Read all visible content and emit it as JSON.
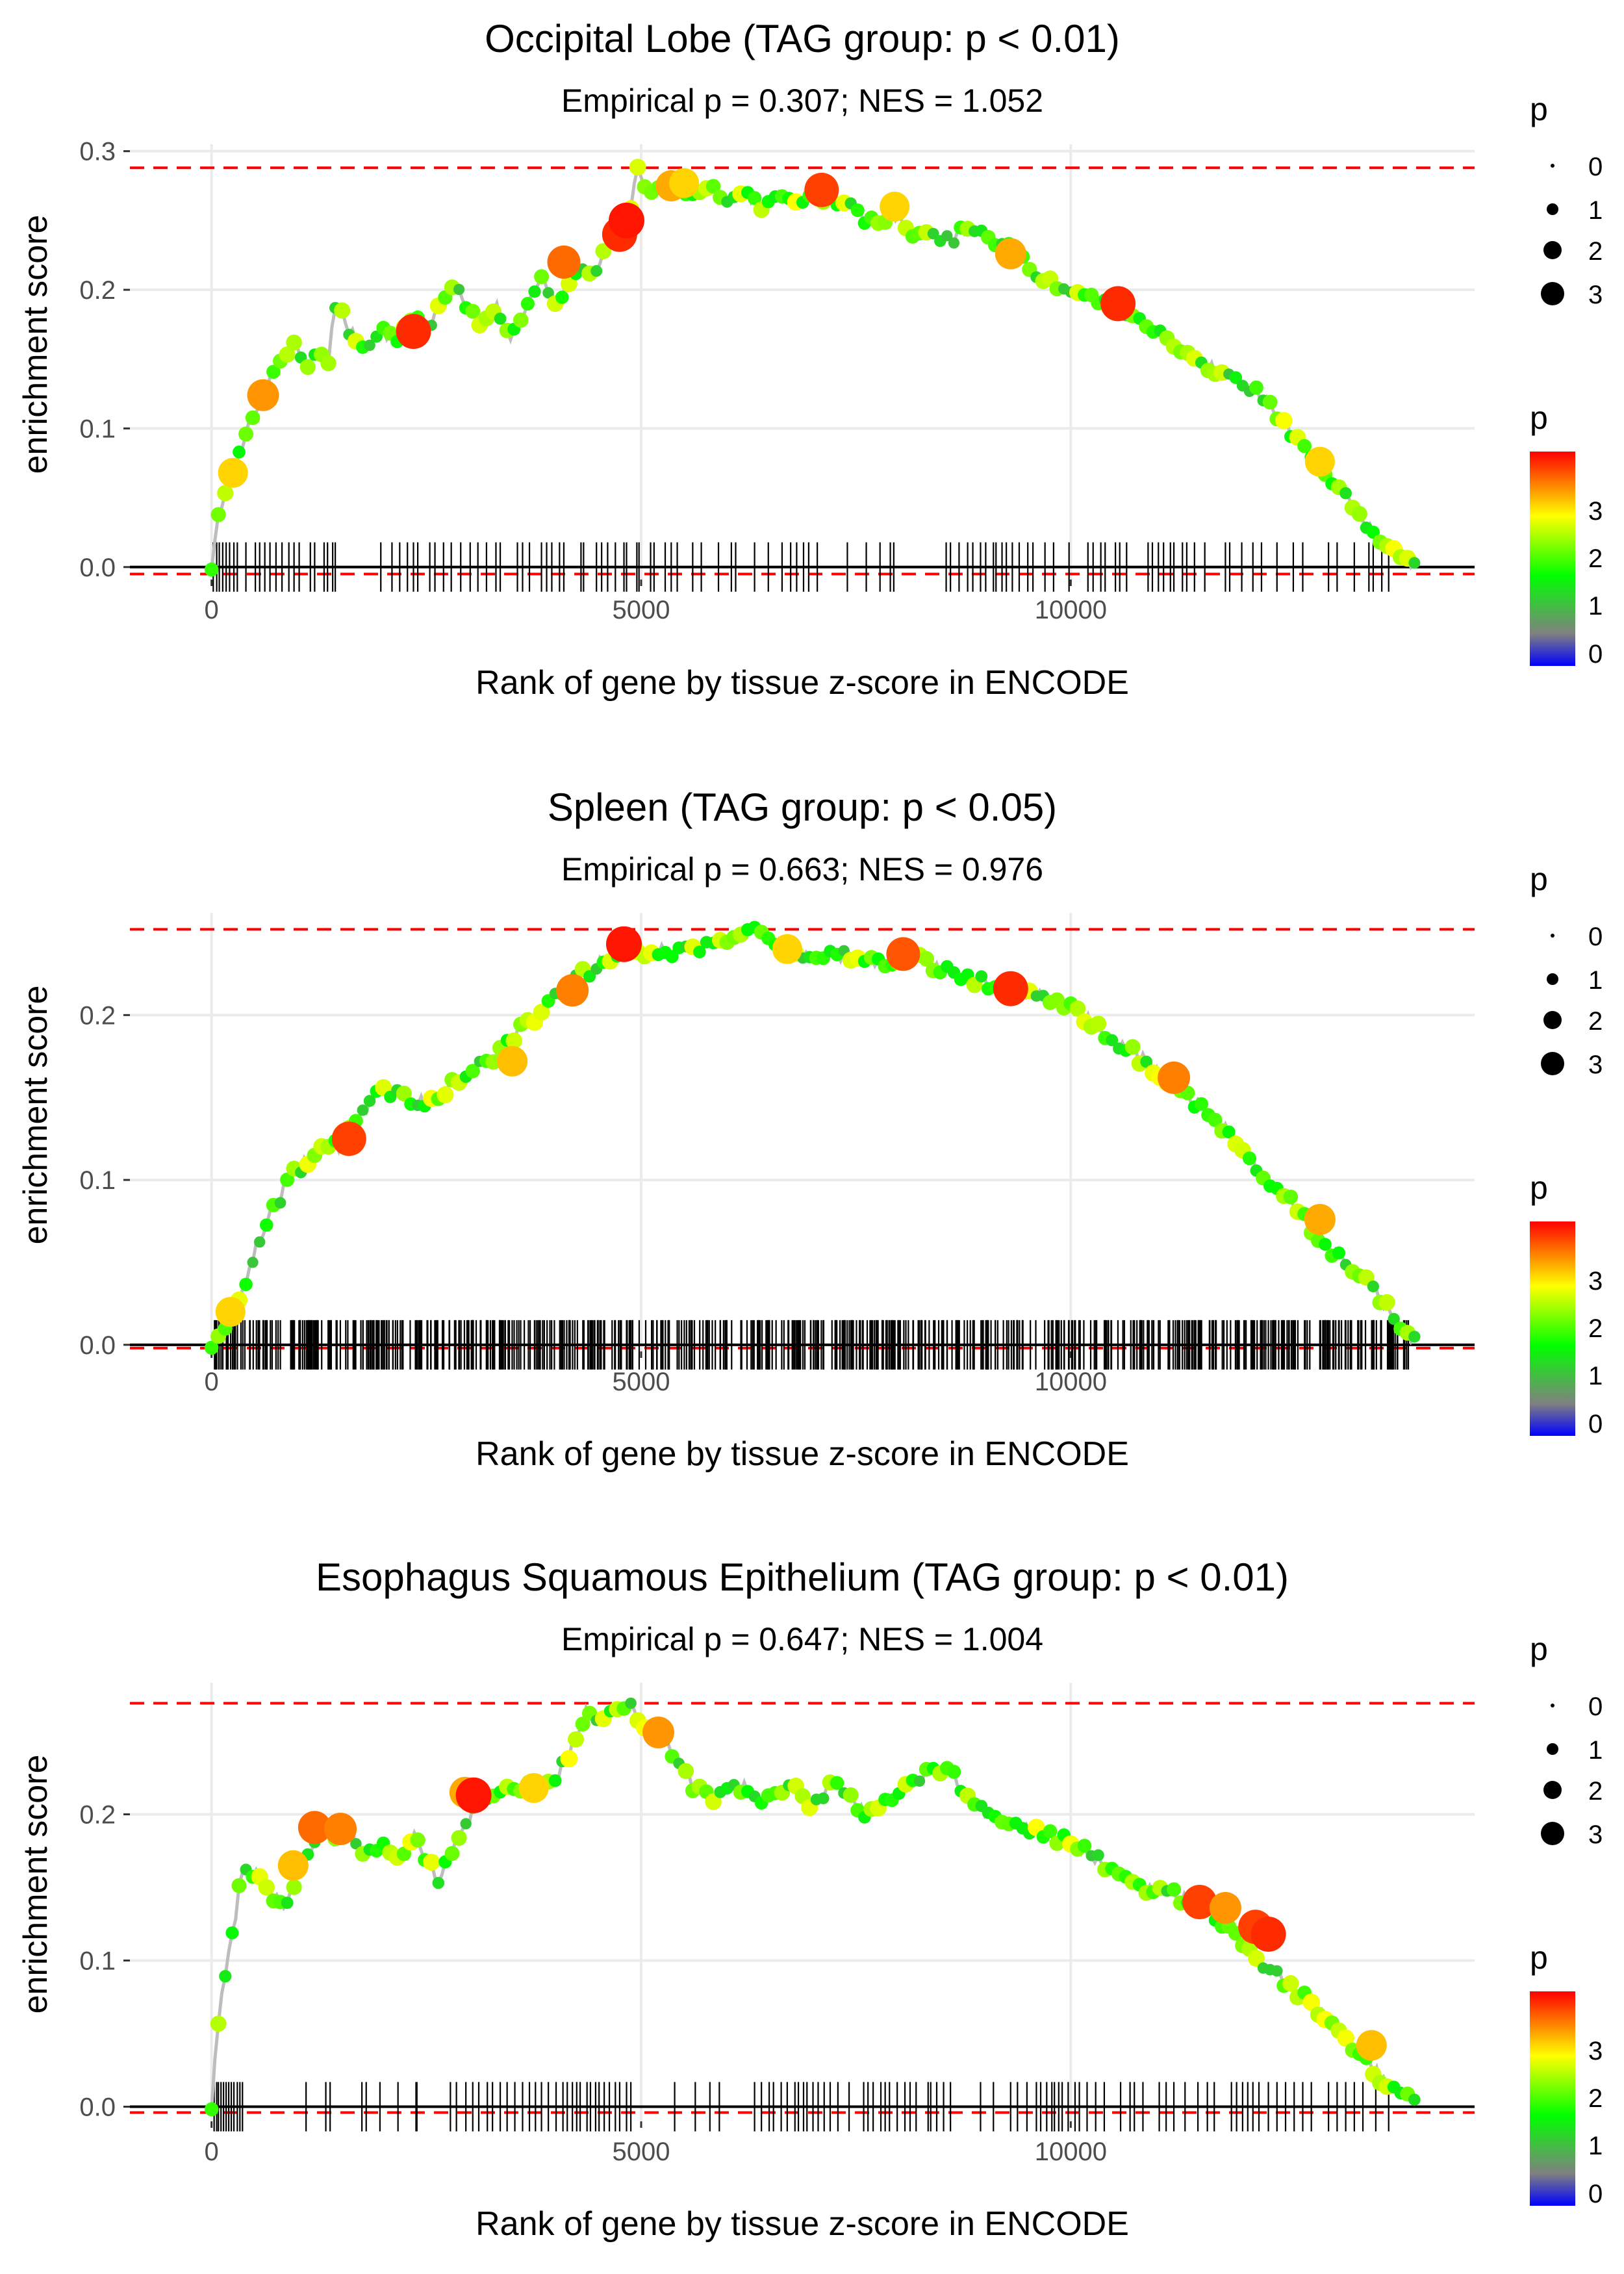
{
  "chart_data": [
    {
      "type": "line",
      "title": "Occipital Lobe (TAG group: p < 0.01)",
      "subtitle": "Empirical p = 0.307; NES = 1.052",
      "xlabel": "Rank of gene by tissue z-score in ENCODE",
      "ylabel": "enrichment score",
      "xlim": [
        -950,
        14700
      ],
      "ylim": [
        -0.009,
        0.305
      ],
      "x_ticks": [
        0,
        5000,
        10000
      ],
      "x_tick_labels": [
        "0",
        "5000",
        "10000"
      ],
      "y_ticks": [
        0.0,
        0.1,
        0.2,
        0.3
      ],
      "y_tick_labels": [
        "0.0",
        "0.1",
        "0.2",
        "0.3"
      ],
      "max_es": 0.288,
      "min_es": -0.005,
      "curve_x": [
        0,
        50,
        100,
        150,
        250,
        350,
        450,
        550,
        650,
        750,
        850,
        950,
        1100,
        1250,
        1350,
        1450,
        1600,
        1800,
        2000,
        2100,
        2250,
        2400,
        2550,
        2700,
        2850,
        3000,
        3150,
        3300,
        3450,
        3600,
        3750,
        3850,
        4000,
        4150,
        4300,
        4450,
        4600,
        4750,
        4850,
        4950,
        5050,
        5200,
        5400,
        5600,
        5800,
        6000,
        6200,
        6400,
        6600,
        6800,
        7000,
        7200,
        7400,
        7600,
        7800,
        8000,
        8200,
        8400,
        8600,
        8800,
        9000,
        9200,
        9400,
        9600,
        9800,
        10000,
        10200,
        10400,
        10600,
        10800,
        11000,
        11200,
        11400,
        11600,
        11800,
        12000,
        12200,
        12400,
        12600,
        12800,
        13000,
        13200,
        13400,
        13600,
        13800,
        14000
      ],
      "curve_y": [
        0.0,
        0.025,
        0.04,
        0.05,
        0.068,
        0.085,
        0.105,
        0.12,
        0.13,
        0.145,
        0.155,
        0.16,
        0.145,
        0.155,
        0.145,
        0.195,
        0.17,
        0.16,
        0.172,
        0.163,
        0.17,
        0.18,
        0.175,
        0.195,
        0.2,
        0.185,
        0.17,
        0.19,
        0.165,
        0.18,
        0.195,
        0.21,
        0.19,
        0.205,
        0.215,
        0.21,
        0.235,
        0.245,
        0.25,
        0.288,
        0.275,
        0.27,
        0.275,
        0.27,
        0.275,
        0.265,
        0.27,
        0.26,
        0.268,
        0.265,
        0.27,
        0.265,
        0.262,
        0.25,
        0.25,
        0.255,
        0.238,
        0.24,
        0.235,
        0.245,
        0.24,
        0.232,
        0.225,
        0.21,
        0.205,
        0.2,
        0.195,
        0.19,
        0.185,
        0.18,
        0.17,
        0.158,
        0.15,
        0.145,
        0.14,
        0.132,
        0.125,
        0.11,
        0.095,
        0.08,
        0.065,
        0.05,
        0.035,
        0.02,
        0.01,
        0.0
      ],
      "hits": [
        20,
        60,
        90,
        130,
        170,
        210,
        260,
        300,
        400,
        510,
        560,
        620,
        680,
        750,
        820,
        900,
        960,
        1020,
        1150,
        1200,
        1310,
        1350,
        1410,
        1440,
        1970,
        2100,
        2190,
        2280,
        2350,
        2400,
        2540,
        2600,
        2700,
        2790,
        2900,
        3010,
        3100,
        3200,
        3310,
        3360,
        3560,
        3620,
        3700,
        3840,
        3900,
        3960,
        4050,
        4100,
        4300,
        4330,
        4480,
        4540,
        4610,
        4700,
        4800,
        4830,
        4950,
        4975,
        5110,
        5150,
        5280,
        5350,
        5420,
        5600,
        5700,
        5900,
        6050,
        6100,
        6320,
        6480,
        6640,
        6740,
        6810,
        6890,
        6950,
        7050,
        7400,
        7620,
        7780,
        7900,
        7940,
        8550,
        8600,
        8700,
        8800,
        8860,
        8950,
        9010,
        9100,
        9130,
        9200,
        9250,
        9320,
        9400,
        9500,
        9560,
        9700,
        9800,
        9980,
        10200,
        10260,
        10350,
        10400,
        10520,
        10570,
        10650,
        10900,
        10950,
        11020,
        11080,
        11160,
        11200,
        11300,
        11350,
        11440,
        11560,
        11800,
        11850,
        11990,
        12120,
        12220,
        12400,
        12590,
        12700,
        13000,
        13100,
        13300,
        13470,
        13520,
        13620,
        13700
      ],
      "highlights": [
        {
          "x": 250,
          "y": 0.068,
          "p": 3.0
        },
        {
          "x": 600,
          "y": 0.124,
          "p": 3.3
        },
        {
          "x": 2350,
          "y": 0.17,
          "p": 3.8
        },
        {
          "x": 4100,
          "y": 0.22,
          "p": 3.5
        },
        {
          "x": 4750,
          "y": 0.24,
          "p": 3.8
        },
        {
          "x": 4830,
          "y": 0.25,
          "p": 3.9
        },
        {
          "x": 5350,
          "y": 0.275,
          "p": 3.2
        },
        {
          "x": 5500,
          "y": 0.277,
          "p": 3.0
        },
        {
          "x": 7100,
          "y": 0.272,
          "p": 3.7
        },
        {
          "x": 7950,
          "y": 0.26,
          "p": 3.0
        },
        {
          "x": 9300,
          "y": 0.226,
          "p": 3.2
        },
        {
          "x": 10550,
          "y": 0.19,
          "p": 3.8
        },
        {
          "x": 12900,
          "y": 0.076,
          "p": 3.0
        }
      ],
      "legend_size": {
        "title": "p",
        "labels": [
          "0",
          "1",
          "2",
          "3"
        ]
      },
      "legend_color": {
        "title": "p",
        "labels": [
          "3",
          "2",
          "1",
          "0"
        ],
        "colors": [
          "#ff0000",
          "#ffff00",
          "#00ff00",
          "#808080",
          "#0000ff"
        ]
      }
    },
    {
      "type": "line",
      "title": "Spleen (TAG group: p < 0.05)",
      "subtitle": "Empirical p = 0.663; NES = 0.976",
      "xlabel": "Rank of gene by tissue z-score in ENCODE",
      "ylabel": "enrichment score",
      "xlim": [
        -950,
        14700
      ],
      "ylim": [
        -0.004,
        0.262
      ],
      "x_ticks": [
        0,
        5000,
        10000
      ],
      "x_tick_labels": [
        "0",
        "5000",
        "10000"
      ],
      "y_ticks": [
        0.0,
        0.1,
        0.2
      ],
      "y_tick_labels": [
        "0.0",
        "0.1",
        "0.2"
      ],
      "max_es": 0.252,
      "min_es": -0.002,
      "curve_x": [
        0,
        100,
        200,
        300,
        400,
        500,
        600,
        700,
        800,
        900,
        1000,
        1150,
        1300,
        1450,
        1600,
        1750,
        1900,
        2050,
        2200,
        2350,
        2500,
        2650,
        2800,
        2950,
        3100,
        3250,
        3400,
        3550,
        3700,
        3850,
        4000,
        4150,
        4300,
        4450,
        4600,
        4750,
        4900,
        5100,
        5300,
        5500,
        5700,
        5900,
        6100,
        6300,
        6500,
        6700,
        6900,
        7100,
        7300,
        7500,
        7700,
        7900,
        8100,
        8300,
        8500,
        8700,
        8900,
        9100,
        9300,
        9500,
        9700,
        9900,
        10100,
        10300,
        10500,
        10700,
        10900,
        11100,
        11300,
        11500,
        11700,
        11900,
        12100,
        12300,
        12500,
        12700,
        12900,
        13100,
        13300,
        13500,
        13700,
        13900,
        14000
      ],
      "curve_y": [
        0.0,
        0.005,
        0.015,
        0.025,
        0.04,
        0.055,
        0.07,
        0.08,
        0.09,
        0.1,
        0.105,
        0.115,
        0.12,
        0.12,
        0.128,
        0.14,
        0.152,
        0.155,
        0.15,
        0.148,
        0.148,
        0.15,
        0.16,
        0.162,
        0.17,
        0.172,
        0.18,
        0.19,
        0.195,
        0.2,
        0.21,
        0.215,
        0.225,
        0.228,
        0.235,
        0.24,
        0.24,
        0.238,
        0.24,
        0.238,
        0.242,
        0.245,
        0.25,
        0.252,
        0.248,
        0.24,
        0.237,
        0.238,
        0.236,
        0.235,
        0.234,
        0.23,
        0.235,
        0.232,
        0.228,
        0.225,
        0.222,
        0.218,
        0.216,
        0.213,
        0.21,
        0.208,
        0.2,
        0.195,
        0.185,
        0.178,
        0.17,
        0.162,
        0.155,
        0.145,
        0.135,
        0.125,
        0.112,
        0.1,
        0.09,
        0.078,
        0.065,
        0.055,
        0.045,
        0.035,
        0.022,
        0.01,
        0.002
      ],
      "hits_dense": true,
      "hits_count": 620,
      "highlights": [
        {
          "x": 220,
          "y": 0.02,
          "p": 3.0
        },
        {
          "x": 1600,
          "y": 0.125,
          "p": 3.7
        },
        {
          "x": 3500,
          "y": 0.172,
          "p": 3.1
        },
        {
          "x": 4200,
          "y": 0.215,
          "p": 3.4
        },
        {
          "x": 4800,
          "y": 0.243,
          "p": 3.9
        },
        {
          "x": 6700,
          "y": 0.24,
          "p": 3.0
        },
        {
          "x": 8050,
          "y": 0.237,
          "p": 3.6
        },
        {
          "x": 9300,
          "y": 0.216,
          "p": 3.8
        },
        {
          "x": 11200,
          "y": 0.162,
          "p": 3.4
        },
        {
          "x": 12900,
          "y": 0.076,
          "p": 3.2
        }
      ],
      "legend_size": {
        "title": "p",
        "labels": [
          "0",
          "1",
          "2",
          "3"
        ]
      },
      "legend_color": {
        "title": "p",
        "labels": [
          "3",
          "2",
          "1",
          "0"
        ],
        "colors": [
          "#ff0000",
          "#ffff00",
          "#00ff00",
          "#808080",
          "#0000ff"
        ]
      }
    },
    {
      "type": "line",
      "title": "Esophagus Squamous Epithelium (TAG group: p < 0.01)",
      "subtitle": "Empirical p = 0.647; NES = 1.004",
      "xlabel": "Rank of gene by tissue z-score in ENCODE",
      "ylabel": "enrichment score",
      "xlim": [
        -950,
        14700
      ],
      "ylim": [
        -0.01,
        0.29
      ],
      "x_ticks": [
        0,
        5000,
        10000
      ],
      "x_tick_labels": [
        "0",
        "5000",
        "10000"
      ],
      "y_ticks": [
        0.0,
        0.1,
        0.2
      ],
      "y_tick_labels": [
        "0.0",
        "0.1",
        "0.2"
      ],
      "max_es": 0.276,
      "min_es": -0.004,
      "curve_x": [
        0,
        50,
        100,
        150,
        200,
        250,
        300,
        350,
        400,
        450,
        550,
        700,
        850,
        1000,
        1150,
        1300,
        1450,
        1600,
        1750,
        1900,
        2050,
        2200,
        2350,
        2500,
        2650,
        2800,
        2950,
        3100,
        3250,
        3400,
        3550,
        3700,
        3850,
        4000,
        4150,
        4250,
        4350,
        4500,
        4650,
        4800,
        4850,
        5000,
        5200,
        5400,
        5600,
        5800,
        6000,
        6200,
        6400,
        6600,
        6800,
        7000,
        7200,
        7400,
        7600,
        7800,
        8000,
        8200,
        8400,
        8600,
        8800,
        9000,
        9200,
        9400,
        9600,
        9800,
        10000,
        10200,
        10400,
        10600,
        10800,
        11000,
        11200,
        11400,
        11600,
        11800,
        12000,
        12200,
        12400,
        12600,
        12800,
        13000,
        13200,
        13400,
        13600,
        13800,
        14000
      ],
      "curve_y": [
        0.0,
        0.04,
        0.07,
        0.09,
        0.105,
        0.12,
        0.14,
        0.16,
        0.162,
        0.16,
        0.158,
        0.145,
        0.135,
        0.16,
        0.172,
        0.19,
        0.18,
        0.19,
        0.175,
        0.17,
        0.18,
        0.165,
        0.185,
        0.17,
        0.155,
        0.175,
        0.19,
        0.21,
        0.212,
        0.22,
        0.215,
        0.22,
        0.215,
        0.225,
        0.24,
        0.255,
        0.27,
        0.265,
        0.27,
        0.275,
        0.276,
        0.265,
        0.255,
        0.24,
        0.22,
        0.21,
        0.215,
        0.22,
        0.205,
        0.215,
        0.22,
        0.205,
        0.22,
        0.215,
        0.2,
        0.21,
        0.215,
        0.225,
        0.23,
        0.23,
        0.21,
        0.2,
        0.195,
        0.19,
        0.19,
        0.185,
        0.18,
        0.175,
        0.165,
        0.16,
        0.15,
        0.15,
        0.145,
        0.14,
        0.135,
        0.125,
        0.11,
        0.1,
        0.09,
        0.08,
        0.07,
        0.058,
        0.045,
        0.035,
        0.02,
        0.01,
        0.002
      ],
      "hits": [
        30,
        60,
        80,
        110,
        140,
        170,
        200,
        230,
        260,
        300,
        330,
        360,
        1100,
        1330,
        1380,
        1750,
        1800,
        1960,
        2170,
        2380,
        2390,
        2780,
        2850,
        2960,
        3040,
        3110,
        3210,
        3270,
        3360,
        3440,
        3530,
        3620,
        3700,
        3770,
        3840,
        3920,
        4010,
        4090,
        4140,
        4200,
        4250,
        4290,
        4370,
        4410,
        4470,
        4510,
        4570,
        4630,
        4700,
        4750,
        4830,
        4880,
        5390,
        5630,
        5800,
        5910,
        6320,
        6400,
        6490,
        6540,
        6630,
        6700,
        6790,
        6830,
        6890,
        6930,
        7000,
        7060,
        7130,
        7200,
        7290,
        7420,
        7590,
        7640,
        7700,
        7790,
        7840,
        7890,
        7980,
        8070,
        8130,
        8200,
        8340,
        8370,
        8440,
        8520,
        8600,
        8950,
        9100,
        9300,
        9380,
        9490,
        9600,
        9650,
        9720,
        9780,
        9810,
        9860,
        9900,
        9970,
        10050,
        10100,
        10190,
        10290,
        10390,
        10580,
        10690,
        10740,
        10840,
        11030,
        11110,
        11200,
        11330,
        11480,
        11590,
        11670,
        11870,
        11930,
        12000,
        12060,
        12120,
        12190,
        12300,
        12400,
        12500,
        12600,
        12700,
        12800,
        13000,
        13100,
        13200,
        13300,
        13400,
        13550,
        13700
      ],
      "highlights": [
        {
          "x": 950,
          "y": 0.165,
          "p": 3.1
        },
        {
          "x": 1200,
          "y": 0.191,
          "p": 3.5
        },
        {
          "x": 1500,
          "y": 0.19,
          "p": 3.4
        },
        {
          "x": 2950,
          "y": 0.215,
          "p": 3.2
        },
        {
          "x": 3050,
          "y": 0.213,
          "p": 3.9
        },
        {
          "x": 3750,
          "y": 0.218,
          "p": 3.0
        },
        {
          "x": 5200,
          "y": 0.256,
          "p": 3.3
        },
        {
          "x": 11500,
          "y": 0.14,
          "p": 3.7
        },
        {
          "x": 11800,
          "y": 0.136,
          "p": 3.3
        },
        {
          "x": 12150,
          "y": 0.123,
          "p": 3.7
        },
        {
          "x": 12300,
          "y": 0.118,
          "p": 3.8
        },
        {
          "x": 13500,
          "y": 0.042,
          "p": 3.1
        }
      ],
      "legend_size": {
        "title": "p",
        "labels": [
          "0",
          "1",
          "2",
          "3"
        ]
      },
      "legend_color": {
        "title": "p",
        "labels": [
          "3",
          "2",
          "1",
          "0"
        ],
        "colors": [
          "#ff0000",
          "#ffff00",
          "#00ff00",
          "#808080",
          "#0000ff"
        ]
      }
    }
  ]
}
